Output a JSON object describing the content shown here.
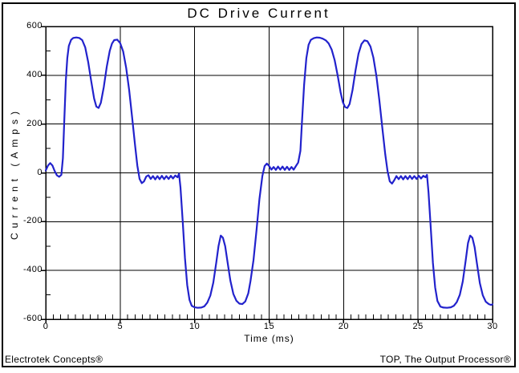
{
  "header": {
    "title": "DC Drive Current"
  },
  "footer": {
    "left": "Electrotek Concepts®",
    "right": "TOP, The Output Processor®"
  },
  "colors": {
    "line": "#2222cc",
    "grid": "#000000",
    "frame": "#000000",
    "background": "#ffffff",
    "text": "#000000"
  },
  "chart_data": {
    "type": "line",
    "title": "DC Drive Current",
    "xlabel": "Time (ms)",
    "ylabel": "Current (Amps)",
    "xlim": [
      0,
      30
    ],
    "ylim": [
      -600,
      600
    ],
    "x_major_ticks": [
      0,
      5,
      10,
      15,
      20,
      25,
      30
    ],
    "x_minor_step": 0.5,
    "y_major_ticks": [
      600,
      400,
      200,
      0,
      -200,
      -400,
      -600
    ],
    "y_minor_step": 100,
    "grid": "major",
    "legend": "none",
    "series": [
      {
        "name": "DC Drive Current",
        "color": "#2222cc",
        "points": [
          [
            0,
            10
          ],
          [
            0.15,
            30
          ],
          [
            0.3,
            40
          ],
          [
            0.45,
            30
          ],
          [
            0.6,
            8
          ],
          [
            0.75,
            -10
          ],
          [
            0.9,
            -16
          ],
          [
            1.05,
            -8
          ],
          [
            1.15,
            60
          ],
          [
            1.25,
            220
          ],
          [
            1.35,
            380
          ],
          [
            1.45,
            470
          ],
          [
            1.55,
            520
          ],
          [
            1.7,
            545
          ],
          [
            1.85,
            553
          ],
          [
            2.05,
            555
          ],
          [
            2.25,
            553
          ],
          [
            2.45,
            544
          ],
          [
            2.65,
            515
          ],
          [
            2.85,
            455
          ],
          [
            3.05,
            378
          ],
          [
            3.25,
            305
          ],
          [
            3.4,
            272
          ],
          [
            3.55,
            266
          ],
          [
            3.7,
            287
          ],
          [
            3.9,
            352
          ],
          [
            4.1,
            435
          ],
          [
            4.3,
            500
          ],
          [
            4.45,
            530
          ],
          [
            4.6,
            544
          ],
          [
            4.8,
            546
          ],
          [
            5.0,
            532
          ],
          [
            5.2,
            498
          ],
          [
            5.4,
            430
          ],
          [
            5.6,
            340
          ],
          [
            5.8,
            228
          ],
          [
            6.0,
            112
          ],
          [
            6.15,
            30
          ],
          [
            6.3,
            -25
          ],
          [
            6.45,
            -42
          ],
          [
            6.6,
            -35
          ],
          [
            6.75,
            -15
          ],
          [
            6.9,
            -10
          ],
          [
            7.05,
            -25
          ],
          [
            7.2,
            -13
          ],
          [
            7.35,
            -27
          ],
          [
            7.5,
            -13
          ],
          [
            7.65,
            -26
          ],
          [
            7.8,
            -12
          ],
          [
            7.95,
            -26
          ],
          [
            8.1,
            -13
          ],
          [
            8.25,
            -25
          ],
          [
            8.4,
            -12
          ],
          [
            8.55,
            -23
          ],
          [
            8.7,
            -11
          ],
          [
            8.85,
            -18
          ],
          [
            8.95,
            -4
          ],
          [
            9.05,
            -60
          ],
          [
            9.2,
            -200
          ],
          [
            9.35,
            -350
          ],
          [
            9.5,
            -460
          ],
          [
            9.65,
            -520
          ],
          [
            9.8,
            -545
          ],
          [
            10.0,
            -551
          ],
          [
            10.2,
            -553
          ],
          [
            10.45,
            -552
          ],
          [
            10.65,
            -547
          ],
          [
            10.85,
            -532
          ],
          [
            11.05,
            -503
          ],
          [
            11.25,
            -450
          ],
          [
            11.45,
            -368
          ],
          [
            11.6,
            -300
          ],
          [
            11.75,
            -257
          ],
          [
            11.9,
            -266
          ],
          [
            12.05,
            -300
          ],
          [
            12.2,
            -362
          ],
          [
            12.4,
            -442
          ],
          [
            12.6,
            -496
          ],
          [
            12.8,
            -524
          ],
          [
            13.0,
            -536
          ],
          [
            13.2,
            -538
          ],
          [
            13.4,
            -527
          ],
          [
            13.6,
            -494
          ],
          [
            13.75,
            -443
          ],
          [
            13.95,
            -358
          ],
          [
            14.15,
            -238
          ],
          [
            14.35,
            -108
          ],
          [
            14.55,
            -12
          ],
          [
            14.7,
            28
          ],
          [
            14.85,
            38
          ],
          [
            15.0,
            28
          ],
          [
            15.15,
            13
          ],
          [
            15.3,
            24
          ],
          [
            15.45,
            12
          ],
          [
            15.6,
            26
          ],
          [
            15.75,
            13
          ],
          [
            15.9,
            26
          ],
          [
            16.05,
            12
          ],
          [
            16.2,
            25
          ],
          [
            16.35,
            12
          ],
          [
            16.5,
            24
          ],
          [
            16.65,
            13
          ],
          [
            16.8,
            28
          ],
          [
            16.95,
            42
          ],
          [
            17.1,
            90
          ],
          [
            17.2,
            200
          ],
          [
            17.35,
            360
          ],
          [
            17.5,
            470
          ],
          [
            17.65,
            525
          ],
          [
            17.8,
            545
          ],
          [
            18.0,
            552
          ],
          [
            18.2,
            555
          ],
          [
            18.4,
            554
          ],
          [
            18.6,
            550
          ],
          [
            18.8,
            543
          ],
          [
            19.0,
            530
          ],
          [
            19.2,
            505
          ],
          [
            19.4,
            462
          ],
          [
            19.6,
            400
          ],
          [
            19.8,
            330
          ],
          [
            19.95,
            290
          ],
          [
            20.1,
            270
          ],
          [
            20.25,
            266
          ],
          [
            20.4,
            282
          ],
          [
            20.6,
            340
          ],
          [
            20.8,
            420
          ],
          [
            21.0,
            488
          ],
          [
            21.2,
            528
          ],
          [
            21.4,
            543
          ],
          [
            21.6,
            540
          ],
          [
            21.8,
            518
          ],
          [
            22.0,
            472
          ],
          [
            22.2,
            398
          ],
          [
            22.4,
            298
          ],
          [
            22.6,
            185
          ],
          [
            22.8,
            75
          ],
          [
            22.95,
            8
          ],
          [
            23.1,
            -35
          ],
          [
            23.25,
            -44
          ],
          [
            23.4,
            -30
          ],
          [
            23.55,
            -13
          ],
          [
            23.7,
            -26
          ],
          [
            23.85,
            -13
          ],
          [
            24.0,
            -27
          ],
          [
            24.15,
            -13
          ],
          [
            24.3,
            -26
          ],
          [
            24.45,
            -12
          ],
          [
            24.6,
            -25
          ],
          [
            24.75,
            -13
          ],
          [
            24.9,
            -25
          ],
          [
            25.05,
            -12
          ],
          [
            25.2,
            -23
          ],
          [
            25.35,
            -12
          ],
          [
            25.5,
            -18
          ],
          [
            25.6,
            -8
          ],
          [
            25.7,
            -80
          ],
          [
            25.85,
            -220
          ],
          [
            26.0,
            -370
          ],
          [
            26.15,
            -470
          ],
          [
            26.3,
            -525
          ],
          [
            26.5,
            -548
          ],
          [
            26.7,
            -552
          ],
          [
            26.95,
            -553
          ],
          [
            27.2,
            -551
          ],
          [
            27.4,
            -545
          ],
          [
            27.6,
            -530
          ],
          [
            27.8,
            -500
          ],
          [
            28.0,
            -445
          ],
          [
            28.2,
            -358
          ],
          [
            28.35,
            -288
          ],
          [
            28.5,
            -257
          ],
          [
            28.65,
            -266
          ],
          [
            28.8,
            -305
          ],
          [
            28.95,
            -370
          ],
          [
            29.15,
            -452
          ],
          [
            29.35,
            -502
          ],
          [
            29.55,
            -528
          ],
          [
            29.75,
            -538
          ],
          [
            29.9,
            -541
          ],
          [
            30,
            -539
          ]
        ]
      }
    ]
  }
}
